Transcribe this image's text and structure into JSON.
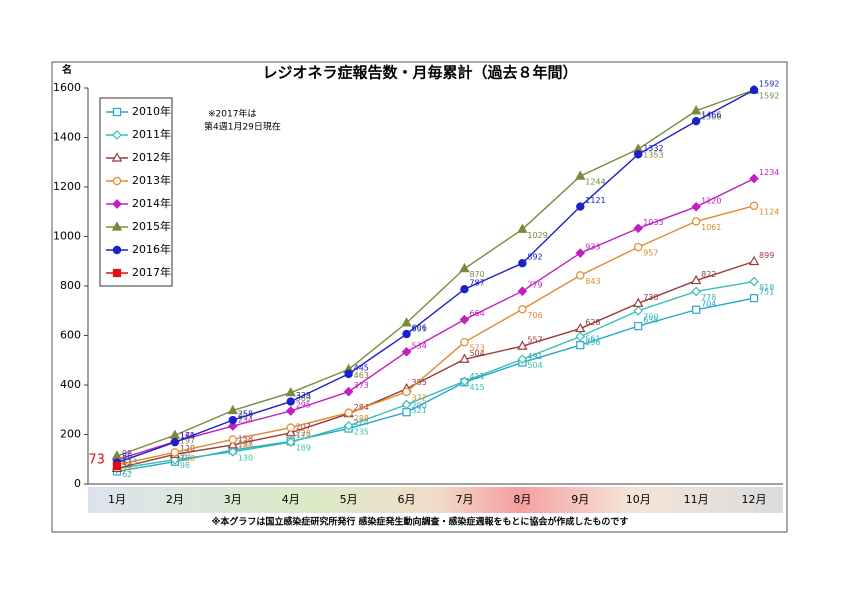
{
  "chart_data": {
    "type": "line",
    "title": "レジオネラ症報告数・月毎累計（過去８年間）",
    "y_axis_label": "名",
    "annotation": [
      "※2017年は",
      "第4週1月29日現在"
    ],
    "footnote": "※本グラフは国立感染症研究所発行 感染症発生動向調査・感染症週報をもとに協会が作成したものです",
    "categories": [
      "1月",
      "2月",
      "3月",
      "4月",
      "5月",
      "6月",
      "7月",
      "8月",
      "9月",
      "10月",
      "11月",
      "12月"
    ],
    "ylim": [
      0,
      1600
    ],
    "yticks": [
      0,
      200,
      400,
      600,
      800,
      1000,
      1200,
      1400,
      1600
    ],
    "legend": "upper left",
    "series": [
      {
        "name": "2010年",
        "color": "#2aa6c8",
        "marker": "square-open",
        "values": [
          51,
          90,
          137,
          172,
          224,
          290,
          411,
          491,
          561,
          638,
          704,
          751
        ]
      },
      {
        "name": "2011年",
        "color": "#35c0ae",
        "marker": "diamond-open",
        "values": [
          62,
          98,
          130,
          169,
          235,
          321,
          415,
          504,
          596,
          700,
          778,
          818
        ]
      },
      {
        "name": "2012年",
        "color": "#9b3a3a",
        "marker": "triangle-open",
        "values": [
          63,
          120,
          158,
          207,
          284,
          385,
          504,
          557,
          628,
          730,
          822,
          899
        ]
      },
      {
        "name": "2013年",
        "color": "#e0892e",
        "marker": "circle-open",
        "values": [
          77,
          128,
          180,
          228,
          288,
          372,
          573,
          706,
          843,
          957,
          1061,
          1124
        ]
      },
      {
        "name": "2014年",
        "color": "#c020c0",
        "marker": "diamond",
        "values": [
          98,
          171,
          234,
          295,
          373,
          534,
          664,
          779,
          933,
          1033,
          1120,
          1234
        ]
      },
      {
        "name": "2015年",
        "color": "#7a8a3a",
        "marker": "triangle",
        "values": [
          113,
          197,
          297,
          369,
          463,
          651,
          870,
          1029,
          1244,
          1353,
          1508,
          1592
        ]
      },
      {
        "name": "2016年",
        "color": "#1a22c8",
        "marker": "circle",
        "values": [
          86,
          169,
          258,
          333,
          445,
          606,
          787,
          892,
          1121,
          1332,
          1466,
          1592
        ]
      },
      {
        "name": "2017年",
        "color": "#e01010",
        "marker": "square",
        "values": [
          73,
          null,
          null,
          null,
          null,
          null,
          null,
          null,
          null,
          null,
          null,
          null
        ]
      }
    ]
  }
}
